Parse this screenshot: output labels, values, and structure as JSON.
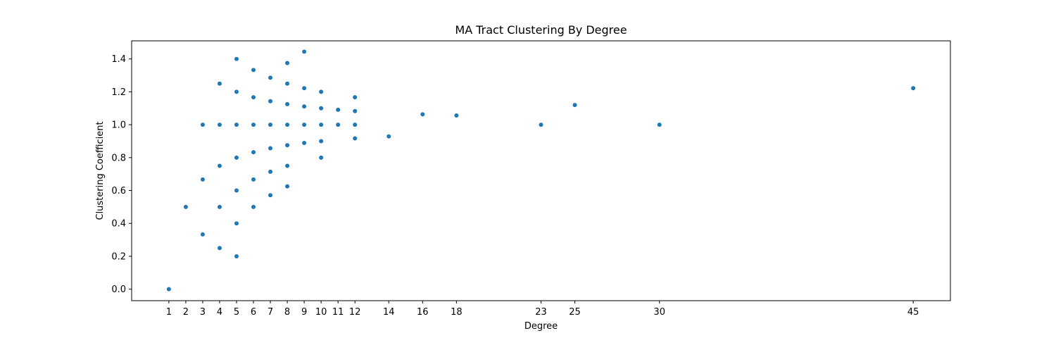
{
  "chart_data": {
    "type": "scatter",
    "title": "MA Tract Clustering By Degree",
    "xlabel": "Degree",
    "ylabel": "Clustering Coefficient",
    "xlim": [
      -1.2,
      47.2
    ],
    "ylim": [
      -0.07,
      1.51
    ],
    "xticks": [
      1,
      2,
      3,
      4,
      5,
      6,
      7,
      8,
      9,
      10,
      11,
      12,
      14,
      16,
      18,
      23,
      25,
      30,
      45
    ],
    "yticks": [
      0.0,
      0.2,
      0.4,
      0.6,
      0.8,
      1.0,
      1.2,
      1.4
    ],
    "ytick_labels": [
      "0.0",
      "0.2",
      "0.4",
      "0.6",
      "0.8",
      "1.0",
      "1.2",
      "1.4"
    ],
    "grid": false,
    "marker_color": "#1f77b4",
    "series": [
      {
        "points": [
          [
            1,
            0.0
          ],
          [
            2,
            0.5
          ],
          [
            3,
            0.333
          ],
          [
            3,
            0.667
          ],
          [
            3,
            1.0
          ],
          [
            4,
            0.25
          ],
          [
            4,
            0.5
          ],
          [
            4,
            0.75
          ],
          [
            4,
            1.0
          ],
          [
            4,
            1.25
          ],
          [
            5,
            0.2
          ],
          [
            5,
            0.4
          ],
          [
            5,
            0.6
          ],
          [
            5,
            0.8
          ],
          [
            5,
            1.0
          ],
          [
            5,
            1.2
          ],
          [
            5,
            1.4
          ],
          [
            6,
            0.5
          ],
          [
            6,
            0.667
          ],
          [
            6,
            0.833
          ],
          [
            6,
            1.0
          ],
          [
            6,
            1.167
          ],
          [
            6,
            1.333
          ],
          [
            7,
            0.571
          ],
          [
            7,
            0.714
          ],
          [
            7,
            0.857
          ],
          [
            7,
            1.0
          ],
          [
            7,
            1.143
          ],
          [
            7,
            1.286
          ],
          [
            8,
            0.625
          ],
          [
            8,
            0.75
          ],
          [
            8,
            0.875
          ],
          [
            8,
            1.0
          ],
          [
            8,
            1.125
          ],
          [
            8,
            1.25
          ],
          [
            8,
            1.375
          ],
          [
            9,
            0.889
          ],
          [
            9,
            1.0
          ],
          [
            9,
            1.111
          ],
          [
            9,
            1.222
          ],
          [
            9,
            1.444
          ],
          [
            10,
            0.8
          ],
          [
            10,
            0.9
          ],
          [
            10,
            1.0
          ],
          [
            10,
            1.1
          ],
          [
            10,
            1.2
          ],
          [
            11,
            1.0
          ],
          [
            11,
            1.091
          ],
          [
            12,
            0.917
          ],
          [
            12,
            1.0
          ],
          [
            12,
            1.083
          ],
          [
            12,
            1.167
          ],
          [
            14,
            0.929
          ],
          [
            16,
            1.063
          ],
          [
            18,
            1.056
          ],
          [
            23,
            1.0
          ],
          [
            25,
            1.12
          ],
          [
            30,
            1.0
          ],
          [
            45,
            1.222
          ]
        ]
      }
    ]
  }
}
